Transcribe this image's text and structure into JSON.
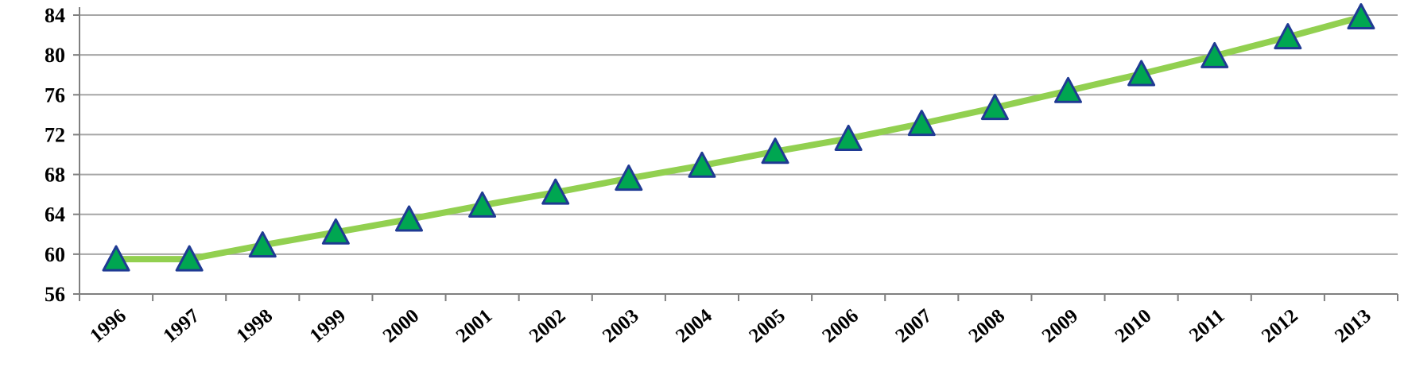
{
  "chart_data": {
    "type": "line",
    "x": [
      "1996",
      "1997",
      "1998",
      "1999",
      "2000",
      "2001",
      "2002",
      "2003",
      "2004",
      "2005",
      "2006",
      "2007",
      "2008",
      "2009",
      "2010",
      "2011",
      "2012",
      "2013"
    ],
    "series": [
      {
        "values": [
          59.5,
          59.5,
          60.9,
          62.2,
          63.5,
          64.9,
          66.2,
          67.6,
          68.9,
          70.3,
          71.6,
          73.1,
          74.7,
          76.4,
          78.1,
          79.9,
          81.8,
          83.8
        ],
        "line_color": "#92d050",
        "marker": "triangle",
        "marker_fill": "#00a651",
        "marker_stroke": "#1f3a93"
      }
    ],
    "title": "",
    "xlabel": "",
    "ylabel": "",
    "ylim": [
      56,
      84
    ],
    "yticks": [
      "56",
      "60",
      "64",
      "68",
      "72",
      "76",
      "80",
      "84"
    ],
    "grid": true,
    "legend": "none",
    "grid_color": "#a6a6a6"
  }
}
